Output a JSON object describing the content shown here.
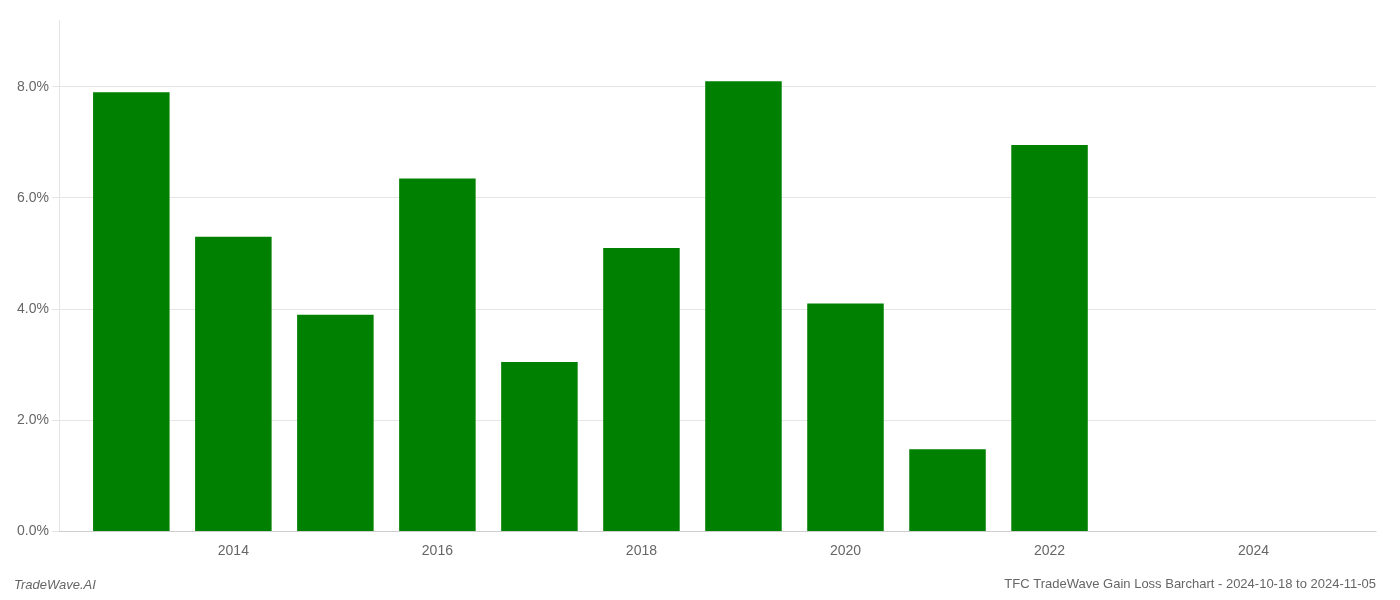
{
  "chart_data": {
    "type": "bar",
    "title": "TFC TradeWave Gain Loss Barchart - 2024-10-18 to 2024-11-05",
    "annotations": [
      "TradeWave.AI"
    ],
    "x": [
      2013,
      2014,
      2015,
      2016,
      2017,
      2018,
      2019,
      2020,
      2021,
      2022
    ],
    "values": [
      0.079,
      0.053,
      0.039,
      0.0635,
      0.0305,
      0.051,
      0.081,
      0.041,
      0.0148,
      0.0695
    ],
    "color": "#008000",
    "xlim": [
      2012.3,
      2025.2
    ],
    "ylim": [
      0.0,
      0.092
    ],
    "xticks": [
      2014,
      2016,
      2018,
      2020,
      2022,
      2024
    ],
    "yticks": [
      {
        "value": 0.0,
        "label": "0.0%"
      },
      {
        "value": 0.02,
        "label": "2.0%"
      },
      {
        "value": 0.04,
        "label": "4.0%"
      },
      {
        "value": 0.06,
        "label": "6.0%"
      },
      {
        "value": 0.08,
        "label": "8.0%"
      }
    ],
    "grid": true
  }
}
